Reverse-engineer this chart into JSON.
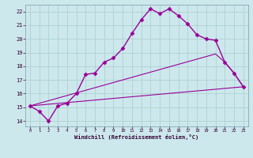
{
  "background_color": "#cce8ec",
  "grid_color": "#aacccc",
  "line_color": "#990099",
  "xlabel": "Windchill (Refroidissement éolien,°C)",
  "xlim": [
    -0.5,
    23.5
  ],
  "ylim": [
    13.6,
    22.5
  ],
  "yticks": [
    14,
    15,
    16,
    17,
    18,
    19,
    20,
    21,
    22
  ],
  "xticks": [
    0,
    1,
    2,
    3,
    4,
    5,
    6,
    7,
    8,
    9,
    10,
    11,
    12,
    13,
    14,
    15,
    16,
    17,
    18,
    19,
    20,
    21,
    22,
    23
  ],
  "series": [
    {
      "x": [
        0,
        1,
        2,
        3,
        4,
        5,
        6,
        7,
        8,
        9,
        10,
        11,
        12,
        13,
        14,
        15,
        16,
        17,
        18,
        19,
        20,
        21,
        22,
        23
      ],
      "y": [
        15.1,
        14.7,
        14.0,
        15.1,
        15.3,
        16.0,
        17.4,
        17.5,
        18.3,
        18.6,
        19.3,
        20.4,
        21.4,
        22.2,
        21.85,
        22.2,
        21.7,
        21.1,
        20.3,
        20.0,
        19.9,
        18.3,
        17.5,
        16.5
      ],
      "marker": "D",
      "marker_size": 2.5,
      "linewidth": 1.0
    },
    {
      "x": [
        0,
        23
      ],
      "y": [
        15.1,
        16.5
      ],
      "marker": null,
      "linewidth": 0.8
    },
    {
      "x": [
        0,
        20,
        21,
        22,
        23
      ],
      "y": [
        15.1,
        18.9,
        18.3,
        17.5,
        16.5
      ],
      "marker": null,
      "linewidth": 0.8
    }
  ]
}
